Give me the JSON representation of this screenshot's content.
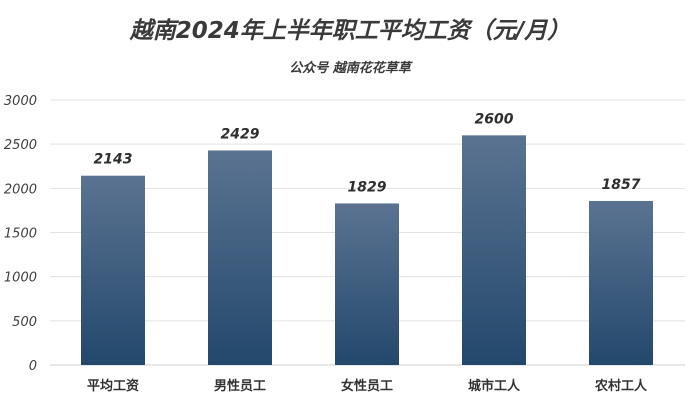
{
  "chart_data": {
    "type": "bar",
    "title": "越南2024年上半年职工平均工资（元/月）",
    "subtitle": "公众号 越南花花草草",
    "categories": [
      "平均工资",
      "男性员工",
      "女性员工",
      "城市工人",
      "农村工人"
    ],
    "values": [
      2143,
      2429,
      1829,
      2600,
      1857
    ],
    "data_labels": [
      "2143",
      "2429",
      "1829",
      "2600",
      "1857"
    ],
    "ylim": [
      0,
      3000
    ],
    "yticks": [
      "0",
      "500",
      "1000",
      "1500",
      "2000",
      "2500",
      "3000"
    ],
    "ytick_values": [
      0,
      500,
      1000,
      1500,
      2000,
      2500,
      3000
    ],
    "grid": true,
    "legend": "none",
    "colors": {
      "bar_top": "#5b7391",
      "bar_bottom": "#23486c",
      "grid": "#e3e3e3",
      "text": "#333333"
    }
  }
}
